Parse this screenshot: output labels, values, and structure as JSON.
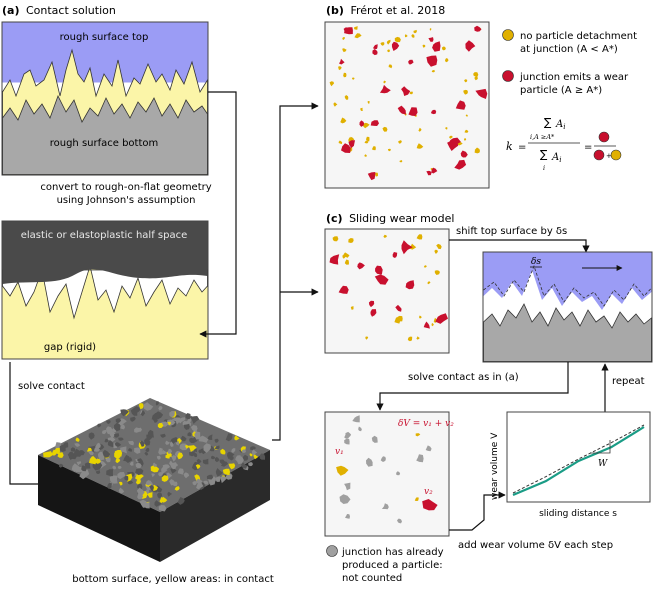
{
  "panel_a": {
    "label": "(a)",
    "title": "Contact solution",
    "rough_top": "rough surface top",
    "rough_bottom": "rough surface bottom",
    "convert_line1": "convert to rough-on-flat geometry",
    "convert_line2": "using Johnson's assumption",
    "half_space": "elastic or elastoplastic half space",
    "gap": "gap (rigid)",
    "solve": "solve contact",
    "bottom_caption": "bottom surface, yellow areas: in contact"
  },
  "panel_b": {
    "label": "(b)",
    "title": "Frérot et al. 2018",
    "legend_yellow_line1": "no particle detachment",
    "legend_yellow_line2": "at junction (A < A*)",
    "legend_red_line1": "junction emits a wear",
    "legend_red_line2": "particle (A ≥ A*)",
    "formula_k": "k",
    "formula_eq": "=",
    "formula_sum": "∑",
    "formula_num_term": "A",
    "formula_num_sub": "i",
    "formula_num_cond": "i,A ≥A*",
    "formula_den_term": "A",
    "formula_den_sub": "i",
    "formula_den_cond": "i",
    "formula_plus": "+"
  },
  "panel_c": {
    "label": "(c)",
    "title": "Sliding wear model",
    "shift": "shift top surface by δs",
    "delta_s": "δs",
    "solve_as": "solve contact as in (a)",
    "repeat": "repeat",
    "dv_eq": "δV = v₁ + v₂",
    "v1": "v₁",
    "v2": "v₂",
    "plot_ylabel": "wear volume V",
    "plot_xlabel": "sliding distance s",
    "plot_W": "W",
    "add_wear": "add wear volume δV each step",
    "legend_gray_line1": "junction has already",
    "legend_gray_line2": "produced a particle:",
    "legend_gray_line3": "not counted"
  },
  "colors": {
    "purple": "#9b9cf5",
    "yellow": "#fbf5a8",
    "gray": "#a8a8a8",
    "dark": "#4a4a4a",
    "red": "#c8102e",
    "gold": "#e0b000",
    "teal": "#1a9c86"
  },
  "chart_data": {
    "type": "line",
    "title": "",
    "xlabel": "sliding distance s",
    "ylabel": "wear volume V",
    "series": [
      {
        "x": [
          0,
          0.25,
          0.5,
          0.75,
          1.0
        ],
        "y": [
          0,
          0.24,
          0.5,
          0.74,
          1.0
        ]
      }
    ],
    "annotations": [
      "W"
    ],
    "grid": false,
    "ticks": false
  }
}
